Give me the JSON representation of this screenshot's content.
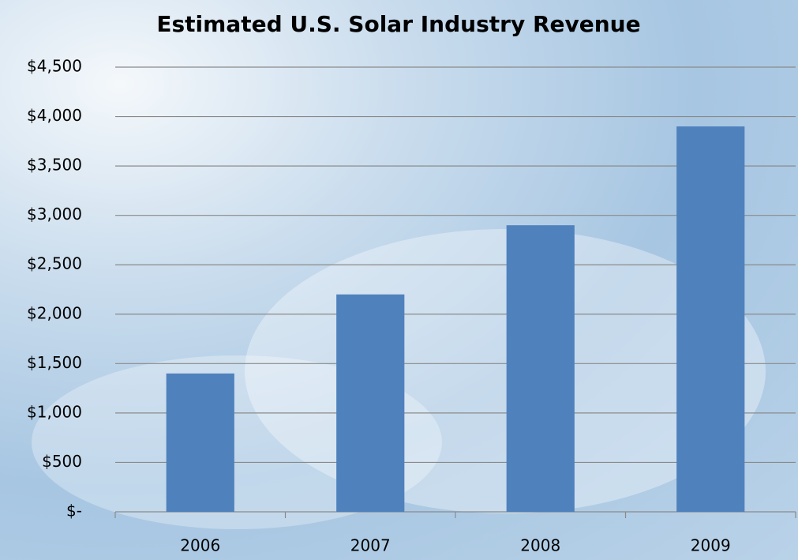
{
  "chart_data": {
    "type": "bar",
    "title": "Estimated U.S. Solar Industry Revenue",
    "categories": [
      "2006",
      "2007",
      "2008",
      "2009"
    ],
    "values": [
      1400,
      2200,
      2900,
      3900
    ],
    "color": "#4f81bd",
    "ylim": [
      0,
      4500
    ],
    "yticks": [
      {
        "value": 0,
        "label": "$-"
      },
      {
        "value": 500,
        "label": "$500"
      },
      {
        "value": 1000,
        "label": "$1,000"
      },
      {
        "value": 1500,
        "label": "$1,500"
      },
      {
        "value": 2000,
        "label": "$2,000"
      },
      {
        "value": 2500,
        "label": "$2,500"
      },
      {
        "value": 3000,
        "label": "$3,000"
      },
      {
        "value": 3500,
        "label": "$3,500"
      },
      {
        "value": 4000,
        "label": "$4,000"
      },
      {
        "value": 4500,
        "label": "$4,500"
      }
    ],
    "grid": true
  }
}
